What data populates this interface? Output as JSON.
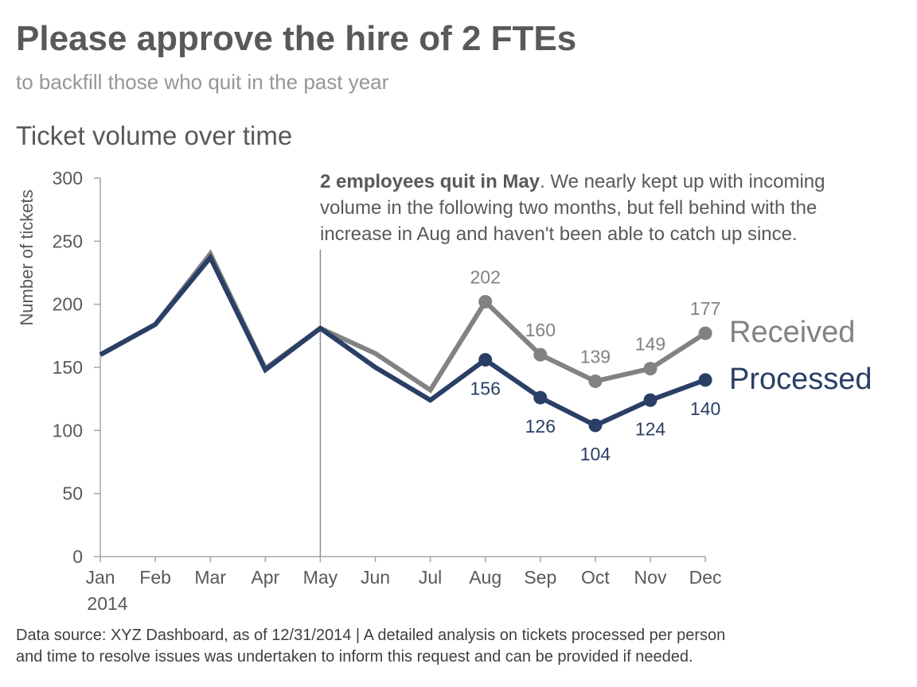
{
  "header": {
    "title": "Please approve the hire of 2 FTEs",
    "subtitle": "to backfill those who quit in the past year",
    "chart_title": "Ticket volume over time"
  },
  "annotation": {
    "bold": "2 employees quit in May",
    "lines": [
      ". We nearly kept up with incoming",
      "volume in the following two months, but fell behind with the",
      "increase in Aug and haven't been able to catch up since."
    ]
  },
  "footnote": {
    "line1": "Data source: XYZ Dashboard, as of 12/31/2014  |  A detailed analysis on tickets processed per person",
    "line2": "and time to resolve issues was undertaken to inform this request and can be provided if needed."
  },
  "colors": {
    "received": "#828282",
    "processed": "#2a3f66",
    "axis": "#a6a6a6",
    "text": "#595959"
  },
  "chart_data": {
    "type": "line",
    "title": "Ticket volume over time",
    "xlabel": "2014",
    "ylabel": "Number of tickets",
    "categories": [
      "Jan",
      "Feb",
      "Mar",
      "Apr",
      "May",
      "Jun",
      "Jul",
      "Aug",
      "Sep",
      "Oct",
      "Nov",
      "Dec"
    ],
    "yticks": [
      0,
      50,
      100,
      150,
      200,
      250,
      300
    ],
    "ylim": [
      0,
      300
    ],
    "grid": false,
    "legend": "direct labels at right end of lines",
    "marker_line_category": "May",
    "series": [
      {
        "name": "Received",
        "values": [
          160,
          184,
          240,
          149,
          181,
          161,
          132,
          202,
          160,
          139,
          149,
          177
        ],
        "labeled_from_index": 7
      },
      {
        "name": "Processed",
        "values": [
          160,
          184,
          237,
          148,
          181,
          150,
          124,
          156,
          126,
          104,
          124,
          140
        ],
        "labeled_from_index": 7
      }
    ]
  }
}
